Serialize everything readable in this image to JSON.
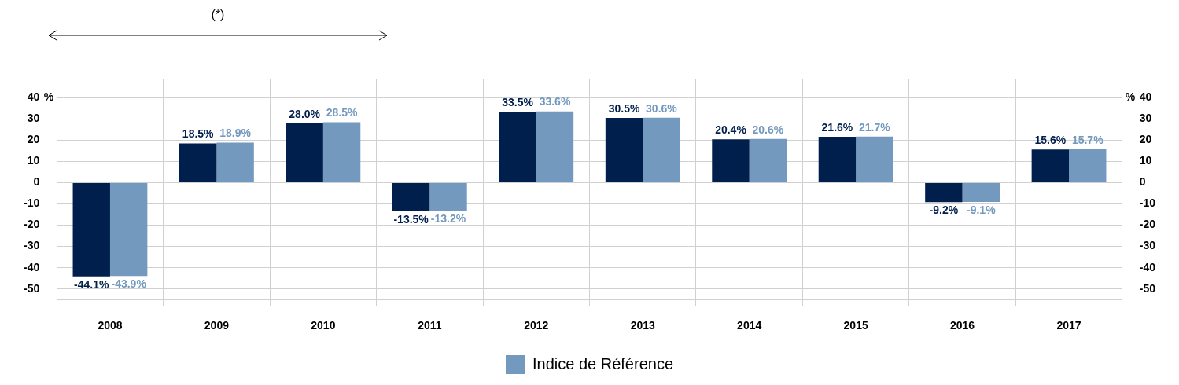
{
  "chart_data": {
    "type": "bar",
    "categories": [
      "2008",
      "2009",
      "2010",
      "2011",
      "2012",
      "2013",
      "2014",
      "2015",
      "2016",
      "2017"
    ],
    "series": [
      {
        "color": "#001f4d",
        "values": [
          -44.1,
          18.5,
          28.0,
          -13.5,
          33.5,
          30.5,
          20.4,
          21.6,
          -9.2,
          15.6
        ]
      },
      {
        "name": "Indice de Référence",
        "color": "#7399bf",
        "values": [
          -43.9,
          18.9,
          28.5,
          -13.2,
          33.6,
          30.6,
          20.6,
          21.7,
          -9.1,
          15.7
        ]
      }
    ],
    "ylim": [
      -55,
      49
    ],
    "yticks": [
      -50,
      -40,
      -30,
      -20,
      -10,
      0,
      10,
      20,
      30,
      40
    ],
    "y2lim": [
      -55,
      49
    ],
    "y2ticks": [
      -50,
      -40,
      -30,
      -20,
      -10,
      0,
      10,
      20,
      30,
      40
    ],
    "ylabel": "%",
    "y2label": "%",
    "value_labels": [
      [
        "-44.1%",
        "18.5%",
        "28.0%",
        "-13.5%",
        "33.5%",
        "30.5%",
        "20.4%",
        "21.6%",
        "-9.2%",
        "15.6%"
      ],
      [
        "-43.9%",
        "18.9%",
        "28.5%",
        "-13.2%",
        "33.6%",
        "30.6%",
        "20.6%",
        "21.7%",
        "-9.1%",
        "15.7%"
      ]
    ],
    "annotations": [
      "(*)"
    ],
    "grid": true,
    "legend": "bottom"
  }
}
